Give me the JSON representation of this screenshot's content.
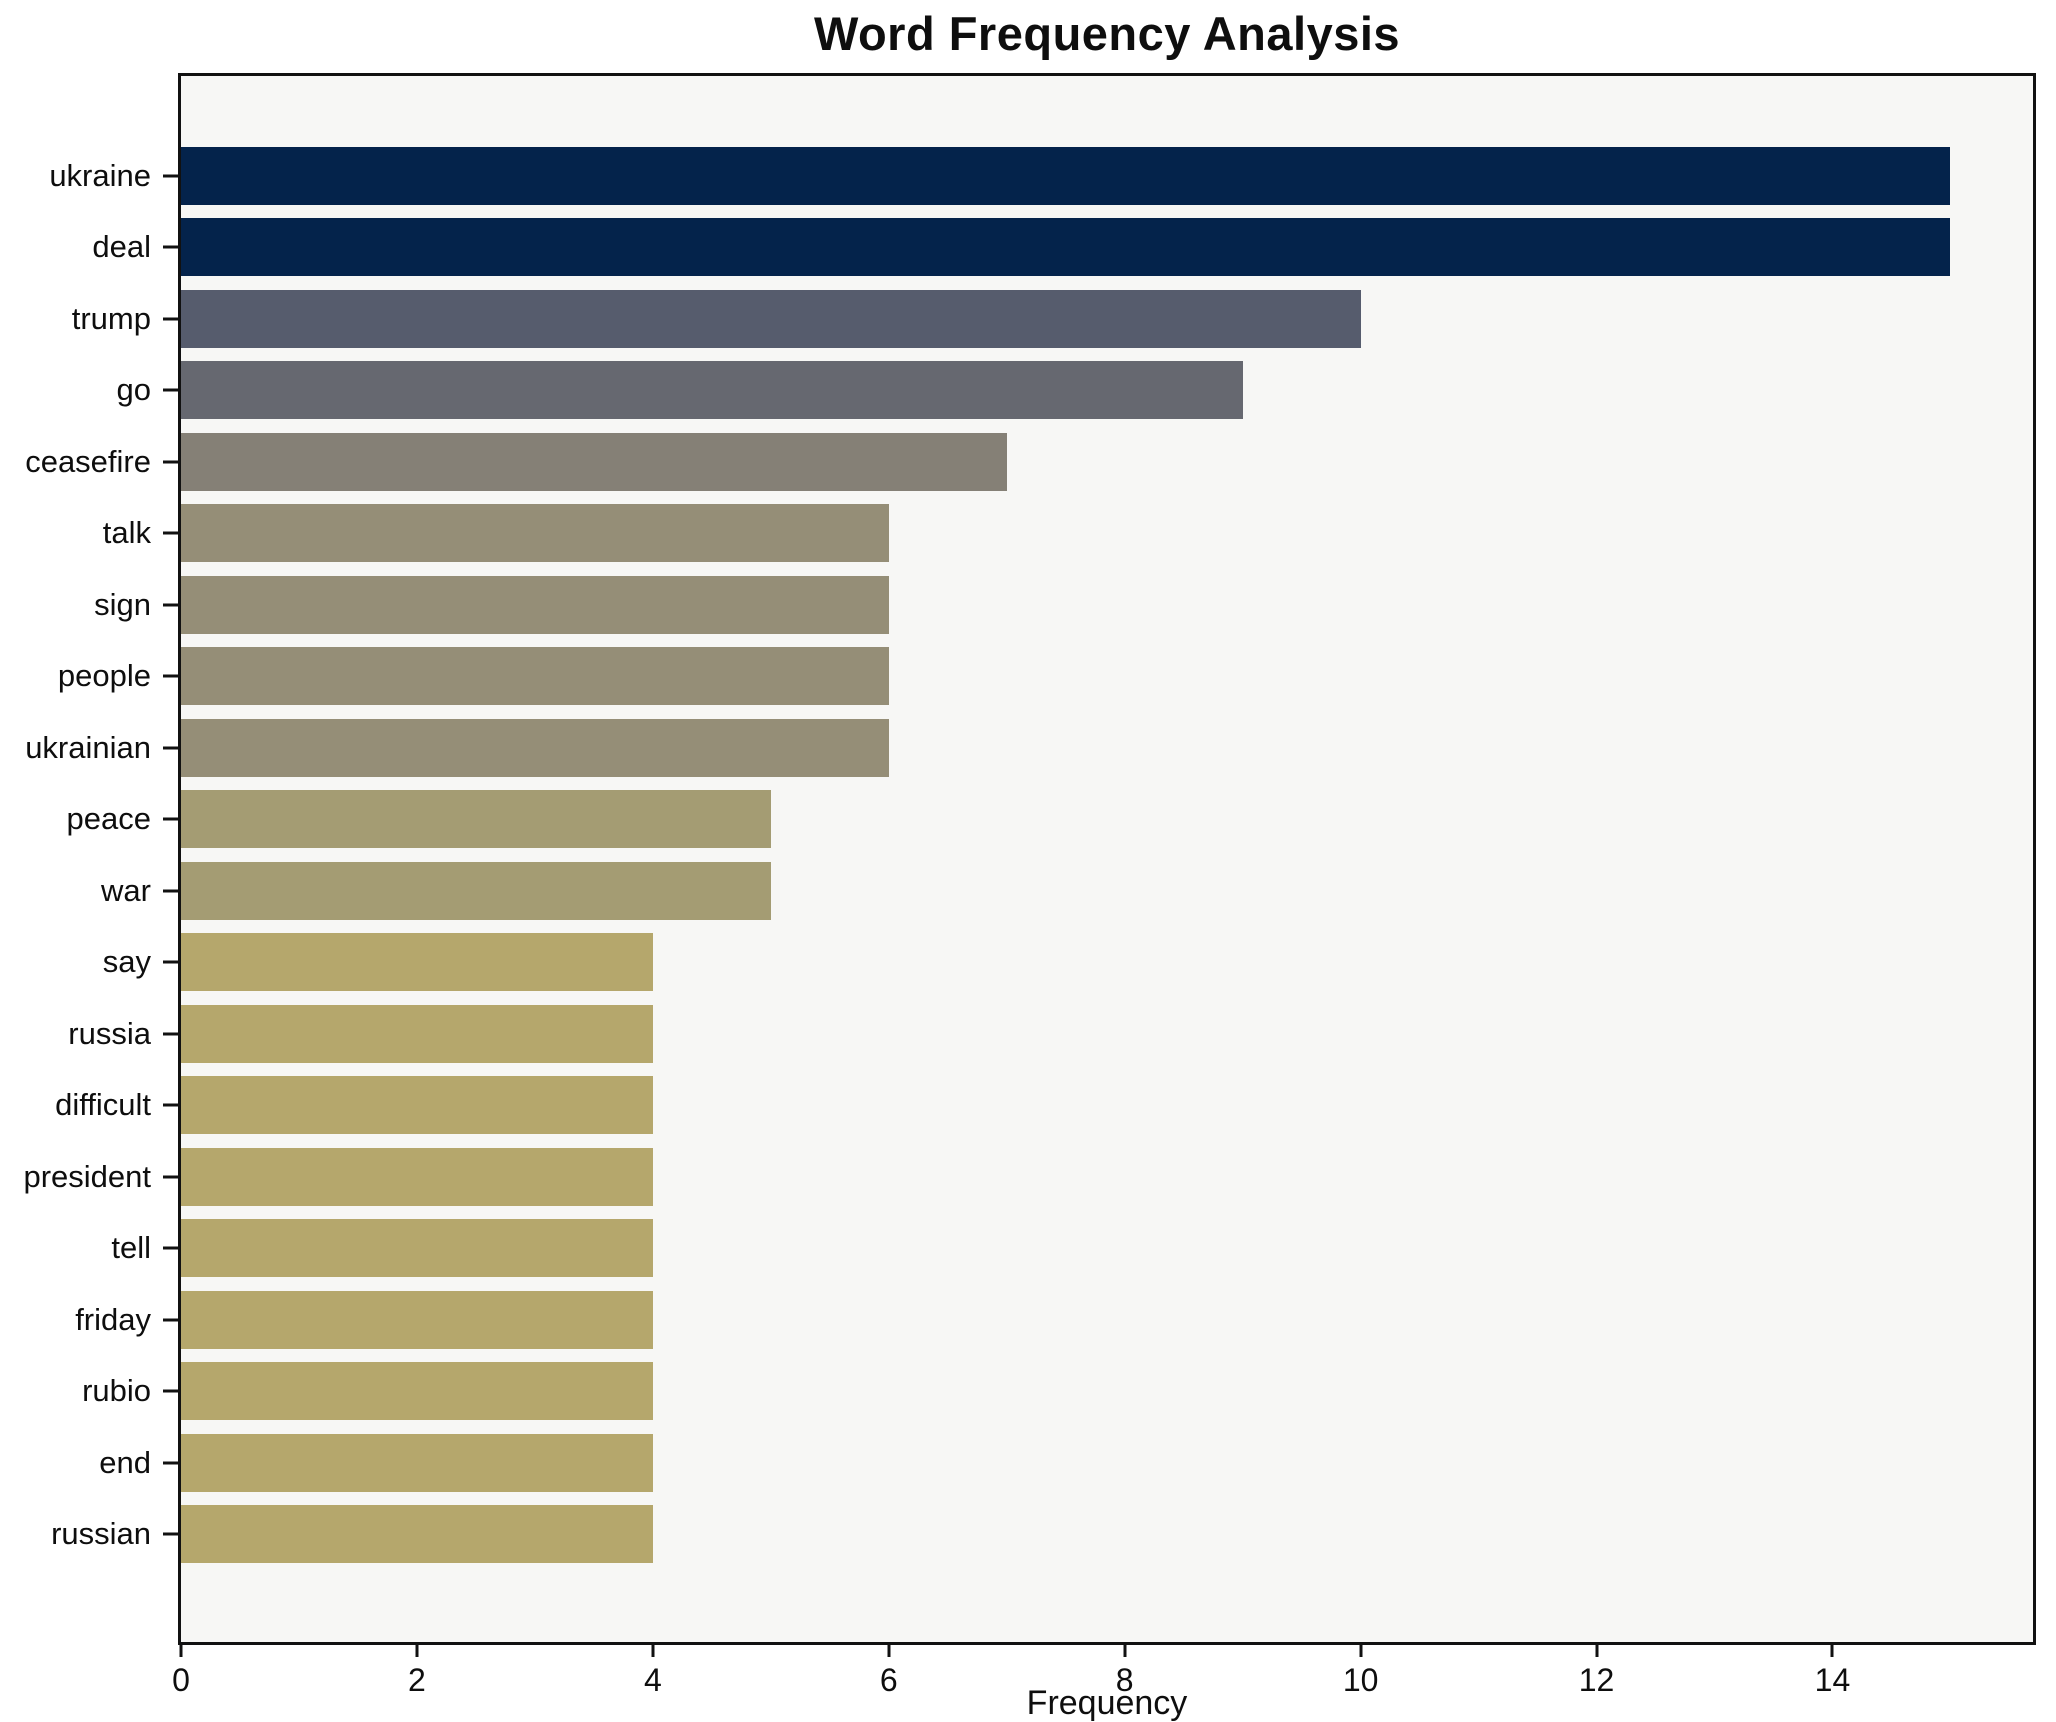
{
  "title": "Word Frequency Analysis",
  "xlabel": "Frequency",
  "chart_data": {
    "type": "bar",
    "orientation": "horizontal",
    "title": "Word Frequency Analysis",
    "xlabel": "Frequency",
    "ylabel": "",
    "categories": [
      "ukraine",
      "deal",
      "trump",
      "go",
      "ceasefire",
      "talk",
      "sign",
      "people",
      "ukrainian",
      "peace",
      "war",
      "say",
      "russia",
      "difficult",
      "president",
      "tell",
      "friday",
      "rubio",
      "end",
      "russian"
    ],
    "values": [
      15,
      15,
      10,
      9,
      7,
      6,
      6,
      6,
      6,
      5,
      5,
      4,
      4,
      4,
      4,
      4,
      4,
      4,
      4,
      4
    ],
    "bar_colors": [
      "#04234b",
      "#04234b",
      "#565c6d",
      "#666870",
      "#858076",
      "#958e77",
      "#958e77",
      "#958e77",
      "#958e77",
      "#a49c73",
      "#a49c73",
      "#b5a76c",
      "#b5a76c",
      "#b5a76c",
      "#b5a76c",
      "#b5a76c",
      "#b5a76c",
      "#b5a76c",
      "#b5a76c",
      "#b5a76c"
    ],
    "xlim": [
      0,
      15.7
    ],
    "xticks": [
      0,
      2,
      4,
      6,
      8,
      10,
      12,
      14
    ],
    "grid": false,
    "legend_position": "none",
    "plot_background": "#f7f7f5",
    "figure_background": "#ffffff",
    "spine_color": "#111111",
    "colormap": "cividis-reversed-by-value"
  }
}
